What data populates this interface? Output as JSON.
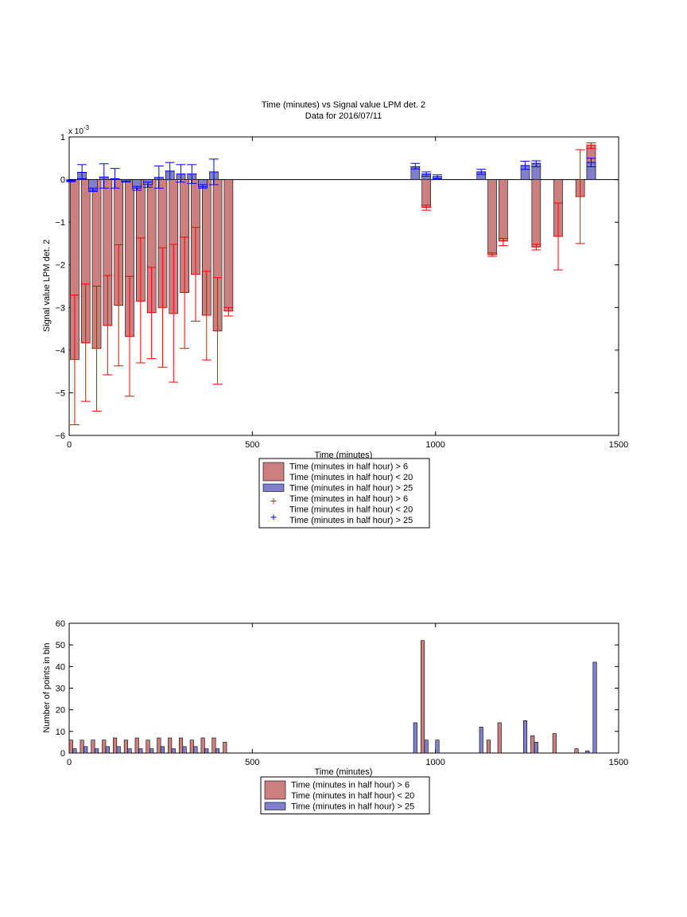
{
  "chart_data": [
    {
      "type": "bar",
      "title": "Time (minutes) vs Signal value LPM det. 2",
      "subtitle": "Data for 2016/07/11",
      "xlabel": "Time (minutes)",
      "ylabel": "Signal value LPM det. 2",
      "exponent_label": "x 10",
      "exponent_power": "-3",
      "xlim": [
        0,
        1500
      ],
      "ylim": [
        -6,
        1
      ],
      "xticks": [
        "0",
        "500",
        "1000",
        "1500"
      ],
      "yticks": [
        "1",
        "0",
        "−1",
        "−2",
        "−3",
        "−4",
        "−5",
        "−6"
      ],
      "series": [
        {
          "name": "Time (minutes in half hour) > 6\nTime (minutes in half hour) < 20",
          "color": "#cc7f7f",
          "errorbar_color": "#ff0000",
          "x": [
            15,
            45,
            75,
            105,
            135,
            165,
            195,
            225,
            255,
            285,
            315,
            345,
            375,
            405,
            435,
            975,
            1155,
            1185,
            1275,
            1335,
            1395,
            1425
          ],
          "values": [
            -4.22,
            -3.83,
            -3.96,
            -3.42,
            -2.95,
            -3.68,
            -2.85,
            -3.12,
            -3.0,
            -3.14,
            -2.65,
            -2.22,
            -3.18,
            -3.55,
            -3.08,
            -0.65,
            -1.76,
            -1.44,
            -1.58,
            -1.33,
            -0.4,
            0.81
          ],
          "err_low": [
            -5.75,
            -5.2,
            -5.43,
            -4.58,
            -4.37,
            -5.08,
            -4.3,
            -4.2,
            -4.4,
            -4.75,
            -3.96,
            -3.32,
            -4.23,
            -4.8,
            -3.2,
            -0.72,
            -1.8,
            -1.55,
            -1.65,
            -2.12,
            -1.5,
            0.73
          ],
          "err_high": [
            -2.71,
            -2.45,
            -2.5,
            -2.25,
            -1.53,
            -2.27,
            -1.37,
            -2.06,
            -1.6,
            -1.52,
            -1.35,
            -1.12,
            -2.15,
            -2.3,
            -3.0,
            -0.6,
            -1.72,
            -1.38,
            -1.52,
            -0.55,
            0.7,
            0.86
          ]
        },
        {
          "name": "Time (minutes in half hour) > 25",
          "color": "#7f7fcc",
          "errorbar_color": "#0000ff",
          "x": [
            5,
            35,
            65,
            95,
            125,
            155,
            185,
            215,
            245,
            275,
            305,
            335,
            365,
            395,
            945,
            975,
            1005,
            1125,
            1245,
            1275,
            1425
          ],
          "values": [
            -0.03,
            0.17,
            -0.25,
            0.06,
            0.02,
            -0.04,
            -0.2,
            -0.12,
            0.05,
            0.2,
            0.13,
            0.13,
            -0.17,
            0.18,
            0.3,
            0.13,
            0.07,
            0.18,
            0.33,
            0.38,
            0.4
          ],
          "err_low": [
            -0.05,
            0.02,
            -0.28,
            -0.2,
            -0.2,
            -0.06,
            -0.25,
            -0.18,
            -0.2,
            0.0,
            -0.06,
            -0.09,
            -0.2,
            -0.12,
            0.25,
            0.08,
            0.02,
            0.12,
            0.24,
            0.3,
            0.3
          ],
          "err_high": [
            -0.01,
            0.35,
            -0.2,
            0.37,
            0.26,
            0.0,
            -0.16,
            -0.06,
            0.32,
            0.4,
            0.35,
            0.35,
            -0.12,
            0.48,
            0.38,
            0.18,
            0.11,
            0.24,
            0.43,
            0.44,
            0.5
          ]
        }
      ],
      "legend": [
        {
          "marker": "patch",
          "color": "#cc7f7f",
          "line1": "Time (minutes in half hour) > 6",
          "line2": "Time (minutes in half hour) < 20"
        },
        {
          "marker": "patch",
          "color": "#7f7fcc",
          "line1": "Time (minutes in half hour) > 25",
          "line2": ""
        },
        {
          "marker": "plus",
          "color": "#ff0000",
          "line1": "Time (minutes in half hour) > 6",
          "line2": "Time (minutes in half hour) < 20"
        },
        {
          "marker": "plus",
          "color": "#0000ff",
          "line1": "Time (minutes in half hour) > 25",
          "line2": ""
        }
      ],
      "legend_placement": "below"
    },
    {
      "type": "bar",
      "title": "",
      "xlabel": "Time (minutes)",
      "ylabel": "Number of points in bin",
      "xlim": [
        0,
        1500
      ],
      "ylim": [
        0,
        60
      ],
      "xticks": [
        "0",
        "500",
        "1000",
        "1500"
      ],
      "yticks": [
        "60",
        "50",
        "40",
        "30",
        "20",
        "10",
        "0"
      ],
      "series": [
        {
          "name": "Time (minutes in half hour) > 6\nTime (minutes in half hour) < 20",
          "color": "#cc7f7f",
          "x": [
            5,
            35,
            65,
            95,
            125,
            155,
            185,
            215,
            245,
            275,
            305,
            335,
            365,
            395,
            425,
            965,
            1145,
            1175,
            1265,
            1325,
            1385
          ],
          "values": [
            6,
            6,
            6,
            6,
            7,
            6,
            7,
            6,
            7,
            7,
            7,
            6,
            7,
            7,
            5,
            52,
            6,
            14,
            8,
            9,
            2
          ]
        },
        {
          "name": "Time (minutes in half hour) > 25",
          "color": "#7f7fcc",
          "x": [
            15,
            45,
            75,
            105,
            135,
            165,
            195,
            225,
            255,
            285,
            315,
            345,
            375,
            405,
            945,
            975,
            1005,
            1125,
            1245,
            1275,
            1415,
            1435
          ],
          "values": [
            2,
            3,
            2,
            3,
            3,
            2,
            2,
            2,
            3,
            2,
            3,
            3,
            2,
            2,
            14,
            6,
            6,
            12,
            15,
            5,
            1,
            42
          ]
        }
      ],
      "legend": [
        {
          "marker": "patch",
          "color": "#cc7f7f",
          "line1": "Time (minutes in half hour) > 6",
          "line2": "Time (minutes in half hour) < 20"
        },
        {
          "marker": "patch",
          "color": "#7f7fcc",
          "line1": "Time (minutes in half hour) > 25",
          "line2": ""
        }
      ],
      "legend_placement": "below"
    }
  ]
}
